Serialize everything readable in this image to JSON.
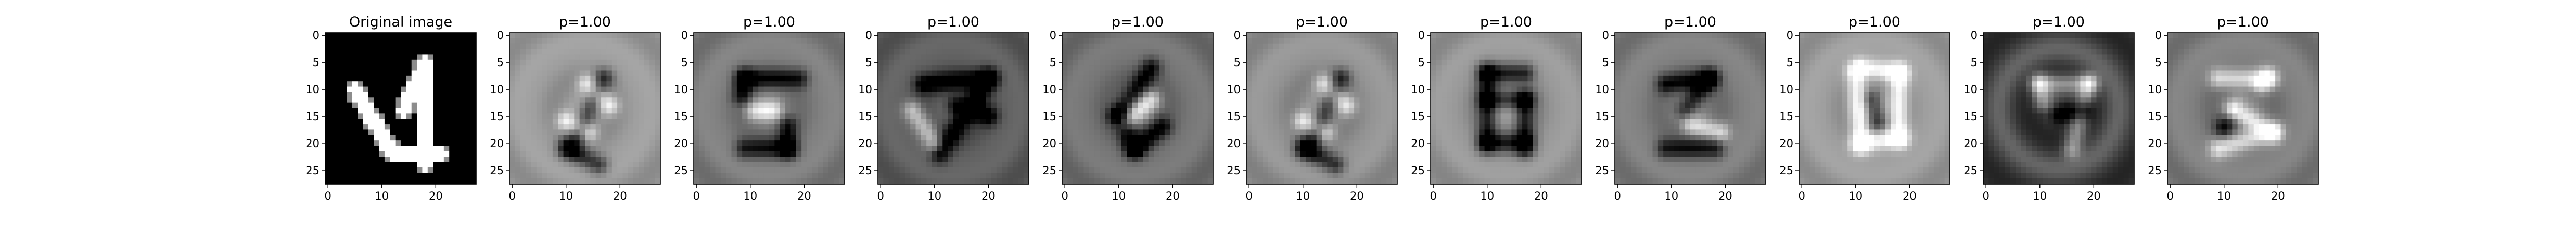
{
  "figure": {
    "background": "#ffffff",
    "panel_count": 11
  },
  "chart_data": {
    "type": "heatmap",
    "grid_size": [
      28,
      28
    ],
    "colormap": "gray",
    "xticks": [
      0,
      10,
      20
    ],
    "yticks": [
      0,
      5,
      10,
      15,
      20,
      25
    ],
    "xlim": [
      -0.5,
      27.5
    ],
    "ylim": [
      27.5,
      -0.5
    ],
    "panels": [
      {
        "title": "Original image",
        "motif": "digit-4",
        "bg": 0.0
      },
      {
        "title": "p=1.00",
        "motif": "slant-1",
        "bg": 0.62
      },
      {
        "title": "p=1.00",
        "motif": "blob-5",
        "bg": 0.5
      },
      {
        "title": "p=1.00",
        "motif": "swirl-7",
        "bg": 0.38
      },
      {
        "title": "p=1.00",
        "motif": "swirl-6",
        "bg": 0.46
      },
      {
        "title": "p=1.00",
        "motif": "slant-1",
        "bg": 0.58
      },
      {
        "title": "p=1.00",
        "motif": "loop-8",
        "bg": 0.6
      },
      {
        "title": "p=1.00",
        "motif": "blob-2",
        "bg": 0.5
      },
      {
        "title": "p=1.00",
        "motif": "ring-0",
        "bg": 0.62
      },
      {
        "title": "p=1.00",
        "motif": "swirl-9",
        "bg": 0.22
      },
      {
        "title": "p=1.00",
        "motif": "swirl-3",
        "bg": 0.5
      }
    ]
  }
}
